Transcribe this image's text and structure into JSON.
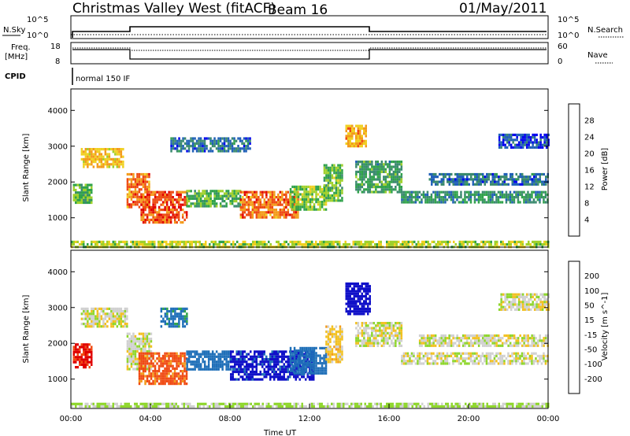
{
  "header": {
    "title": "Christmas Valley West (fitACF)",
    "beam": "Beam 16",
    "date": "01/May/2011"
  },
  "params": {
    "nsky_label": "N.Sky",
    "nsearch_label": "N.Search",
    "freq_label_1": "Freq.",
    "freq_label_2": "[MHz]",
    "nave_label": "Nave",
    "cpid_label": "CPID",
    "cpid_value": "normal 150 IF",
    "noise_ticks": [
      "10^5",
      "10^0"
    ],
    "freq_ticks": [
      "18",
      "8"
    ],
    "nave_ticks": [
      "60",
      "0"
    ]
  },
  "colors": {
    "power": [
      "#0000ee",
      "#1f5fb8",
      "#3a8a6e",
      "#2fa24a",
      "#9fd02b",
      "#f0d020",
      "#f39a1a",
      "#ee4a12",
      "#e00000"
    ],
    "velocity": [
      "#e00000",
      "#f04a12",
      "#f39a1a",
      "#f2c020",
      "#d0d0d0",
      "#8ed62b",
      "#2fa24a",
      "#1f6fb8",
      "#1010c8"
    ]
  },
  "chart_data": [
    {
      "type": "heatmap",
      "name": "power",
      "xlabel": "",
      "ylabel": "Slant Range [km]",
      "yticks": [
        1000,
        2000,
        3000,
        4000
      ],
      "ylim": [
        180,
        4600
      ],
      "xlim": [
        0,
        24
      ],
      "colorbar_label": "Power [dB]",
      "colorbar_ticks": [
        4,
        8,
        12,
        16,
        20,
        24,
        28
      ],
      "colorbar_range": [
        0,
        32
      ],
      "regions": [
        {
          "t0": 0.1,
          "t1": 1.0,
          "r0": 1450,
          "r1": 1950,
          "v": 13
        },
        {
          "t0": 0.5,
          "t1": 2.6,
          "r0": 2450,
          "r1": 2950,
          "v": 21
        },
        {
          "t0": 2.8,
          "t1": 3.9,
          "r0": 1300,
          "r1": 2250,
          "v": 25
        },
        {
          "t0": 3.5,
          "t1": 5.8,
          "r0": 850,
          "r1": 1750,
          "v": 27
        },
        {
          "t0": 5.8,
          "t1": 8.5,
          "r0": 1300,
          "r1": 1780,
          "v": 13
        },
        {
          "t0": 8.5,
          "t1": 11.4,
          "r0": 1000,
          "r1": 1750,
          "v": 25
        },
        {
          "t0": 11.0,
          "t1": 12.8,
          "r0": 1200,
          "r1": 1900,
          "v": 15
        },
        {
          "t0": 12.7,
          "t1": 13.6,
          "r0": 1500,
          "r1": 2500,
          "v": 14
        },
        {
          "t0": 13.8,
          "t1": 14.8,
          "r0": 3000,
          "r1": 3600,
          "v": 22
        },
        {
          "t0": 14.3,
          "t1": 16.6,
          "r0": 1750,
          "r1": 2600,
          "v": 11
        },
        {
          "t0": 16.6,
          "t1": 24.0,
          "r0": 1450,
          "r1": 1750,
          "v": 10
        },
        {
          "t0": 18.0,
          "t1": 24.0,
          "r0": 1950,
          "r1": 2250,
          "v": 7
        },
        {
          "t0": 21.5,
          "t1": 24.0,
          "r0": 2950,
          "r1": 3350,
          "v": 4
        },
        {
          "t0": 5.0,
          "t1": 9.0,
          "r0": 2850,
          "r1": 3250,
          "v": 7
        },
        {
          "t0": 0.0,
          "t1": 24.0,
          "r0": 200,
          "r1": 360,
          "v": 17
        }
      ]
    },
    {
      "type": "heatmap",
      "name": "velocity",
      "xlabel": "Time UT",
      "ylabel": "Slant Range [km]",
      "xticks": [
        "00:00",
        "04:00",
        "08:00",
        "12:00",
        "16:00",
        "20:00",
        "00:00"
      ],
      "yticks": [
        1000,
        2000,
        3000,
        4000
      ],
      "ylim": [
        180,
        4600
      ],
      "xlim": [
        0,
        24
      ],
      "colorbar_label": "Velocity [m s^-1]",
      "colorbar_ticks": [
        -200,
        -100,
        -50,
        -15,
        15,
        50,
        100,
        200
      ],
      "regions": [
        {
          "t0": 0.1,
          "t1": 1.0,
          "r0": 1350,
          "r1": 2000,
          "v": -210
        },
        {
          "t0": 0.5,
          "t1": 2.8,
          "r0": 2450,
          "r1": 3000,
          "v": 0
        },
        {
          "t0": 2.8,
          "t1": 4.0,
          "r0": 1300,
          "r1": 2300,
          "v": 0
        },
        {
          "t0": 3.4,
          "t1": 5.8,
          "r0": 850,
          "r1": 1750,
          "v": -120
        },
        {
          "t0": 4.5,
          "t1": 5.8,
          "r0": 2500,
          "r1": 3000,
          "v": 120
        },
        {
          "t0": 5.8,
          "t1": 8.0,
          "r0": 1300,
          "r1": 1800,
          "v": 170
        },
        {
          "t0": 8.0,
          "t1": 12.2,
          "r0": 1000,
          "r1": 1800,
          "v": 220
        },
        {
          "t0": 11.0,
          "t1": 12.8,
          "r0": 1150,
          "r1": 1900,
          "v": 150
        },
        {
          "t0": 12.8,
          "t1": 13.6,
          "r0": 1500,
          "r1": 2500,
          "v": -30
        },
        {
          "t0": 13.8,
          "t1": 15.0,
          "r0": 2800,
          "r1": 3700,
          "v": 230
        },
        {
          "t0": 14.3,
          "t1": 16.6,
          "r0": 1900,
          "r1": 2600,
          "v": 0
        },
        {
          "t0": 16.6,
          "t1": 24.0,
          "r0": 1450,
          "r1": 1750,
          "v": 0
        },
        {
          "t0": 17.5,
          "t1": 24.0,
          "r0": 1950,
          "r1": 2250,
          "v": 0
        },
        {
          "t0": 21.5,
          "t1": 24.0,
          "r0": 2950,
          "r1": 3400,
          "v": 0
        },
        {
          "t0": 0.0,
          "t1": 24.0,
          "r0": 200,
          "r1": 340,
          "v": 20
        }
      ]
    }
  ]
}
